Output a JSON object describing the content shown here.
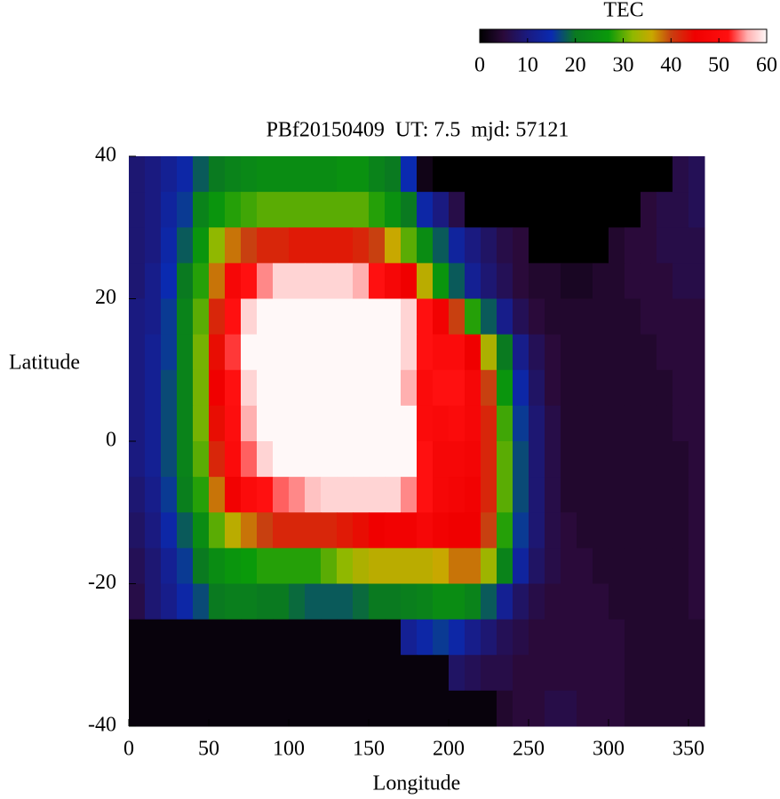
{
  "chart_data": {
    "type": "heatmap",
    "title": "PBf20150409  UT: 7.5  mjd: 57121",
    "xlabel": "Longitude",
    "ylabel": "Latitude",
    "colorbar_title": "TEC",
    "colorbar_lim": [
      0,
      60
    ],
    "colorbar_ticks": [
      0,
      10,
      20,
      30,
      40,
      50,
      60
    ],
    "colormap": [
      [
        0,
        "#000000"
      ],
      [
        5,
        "#2a0a3a"
      ],
      [
        10,
        "#1a1a80"
      ],
      [
        15,
        "#0a2ab0"
      ],
      [
        20,
        "#0a7a20"
      ],
      [
        27,
        "#0a9a0a"
      ],
      [
        32,
        "#90b800"
      ],
      [
        36,
        "#c8a800"
      ],
      [
        40,
        "#c84010"
      ],
      [
        45,
        "#f00000"
      ],
      [
        52,
        "#ff1010"
      ],
      [
        56,
        "#ffb0b0"
      ],
      [
        60,
        "#fff8f8"
      ]
    ],
    "xlim": [
      0,
      360
    ],
    "xticks": [
      0,
      50,
      100,
      150,
      200,
      250,
      300,
      350
    ],
    "ylim": [
      -40,
      40
    ],
    "yticks": [
      -40,
      -20,
      0,
      20,
      40
    ],
    "x": [
      5,
      15,
      25,
      35,
      45,
      55,
      65,
      75,
      85,
      95,
      105,
      115,
      125,
      135,
      145,
      155,
      165,
      175,
      185,
      195,
      205,
      215,
      225,
      235,
      245,
      255,
      265,
      275,
      285,
      295,
      305,
      315,
      325,
      335,
      345,
      355
    ],
    "y": [
      37.5,
      32.5,
      27.5,
      22.5,
      17.5,
      12.5,
      7.5,
      2.5,
      -2.5,
      -7.5,
      -12.5,
      -17.5,
      -22.5,
      -27.5,
      -32.5,
      -37.5
    ],
    "values": [
      [
        9,
        10,
        12,
        14,
        18,
        20,
        22,
        23,
        24,
        24,
        24,
        24,
        24,
        25,
        25,
        22,
        20,
        15,
        2,
        0,
        0,
        0,
        0,
        0,
        0,
        0,
        0,
        0,
        0,
        0,
        0,
        0,
        0,
        0,
        6,
        7
      ],
      [
        9,
        10,
        13,
        16,
        22,
        26,
        28,
        29,
        30,
        30,
        30,
        30,
        30,
        30,
        30,
        28,
        25,
        20,
        14,
        10,
        6,
        0,
        0,
        0,
        0,
        0,
        0,
        0,
        0,
        0,
        0,
        0,
        5,
        6,
        6,
        7
      ],
      [
        9,
        10,
        14,
        18,
        26,
        32,
        38,
        40,
        42,
        42,
        43,
        43,
        43,
        43,
        42,
        40,
        36,
        30,
        24,
        18,
        13,
        10,
        8,
        6,
        5,
        0,
        0,
        0,
        0,
        0,
        4,
        5,
        5,
        6,
        6,
        6
      ],
      [
        9,
        11,
        15,
        20,
        28,
        38,
        48,
        52,
        55,
        58,
        58,
        58,
        58,
        58,
        56,
        52,
        48,
        45,
        35,
        26,
        18,
        12,
        9,
        7,
        5,
        4,
        4,
        3,
        3,
        4,
        4,
        5,
        5,
        5,
        6,
        6
      ],
      [
        10,
        11,
        16,
        22,
        30,
        42,
        52,
        58,
        60,
        60,
        60,
        60,
        60,
        60,
        60,
        60,
        60,
        58,
        52,
        46,
        40,
        28,
        18,
        11,
        7,
        5,
        4,
        4,
        4,
        4,
        4,
        4,
        5,
        5,
        5,
        5
      ],
      [
        10,
        12,
        16,
        22,
        31,
        44,
        53,
        60,
        60,
        60,
        60,
        60,
        60,
        60,
        60,
        60,
        60,
        58,
        52,
        50,
        50,
        45,
        34,
        20,
        11,
        7,
        5,
        4,
        4,
        4,
        4,
        4,
        4,
        5,
        5,
        5
      ],
      [
        10,
        12,
        17,
        22,
        31,
        45,
        52,
        58,
        60,
        60,
        60,
        60,
        60,
        60,
        60,
        60,
        60,
        56,
        50,
        52,
        52,
        48,
        40,
        26,
        14,
        8,
        5,
        4,
        4,
        4,
        4,
        4,
        4,
        4,
        5,
        5
      ],
      [
        10,
        12,
        17,
        22,
        31,
        44,
        51,
        56,
        60,
        60,
        60,
        60,
        60,
        60,
        60,
        60,
        60,
        60,
        50,
        49,
        50,
        48,
        42,
        29,
        16,
        9,
        6,
        4,
        4,
        4,
        4,
        4,
        4,
        4,
        5,
        5
      ],
      [
        10,
        12,
        17,
        22,
        30,
        42,
        50,
        54,
        58,
        60,
        60,
        60,
        60,
        60,
        60,
        60,
        60,
        60,
        52,
        48,
        48,
        47,
        42,
        30,
        17,
        9,
        6,
        4,
        4,
        4,
        4,
        4,
        4,
        4,
        4,
        5
      ],
      [
        9,
        11,
        16,
        21,
        28,
        38,
        46,
        50,
        52,
        54,
        55,
        57,
        58,
        58,
        58,
        58,
        58,
        55,
        52,
        48,
        47,
        46,
        42,
        30,
        17,
        9,
        6,
        4,
        4,
        4,
        4,
        4,
        4,
        4,
        4,
        5
      ],
      [
        8,
        10,
        14,
        18,
        24,
        30,
        35,
        38,
        40,
        42,
        42,
        42,
        42,
        43,
        44,
        45,
        46,
        46,
        48,
        46,
        45,
        45,
        40,
        28,
        16,
        9,
        6,
        5,
        4,
        4,
        4,
        4,
        4,
        4,
        4,
        5
      ],
      [
        7,
        9,
        12,
        16,
        20,
        24,
        26,
        27,
        28,
        28,
        28,
        28,
        30,
        32,
        34,
        35,
        35,
        35,
        35,
        36,
        38,
        38,
        33,
        22,
        13,
        8,
        6,
        5,
        5,
        4,
        4,
        4,
        4,
        4,
        4,
        5
      ],
      [
        6,
        9,
        11,
        14,
        17,
        20,
        21,
        21,
        20,
        20,
        19,
        18,
        18,
        18,
        19,
        20,
        20,
        21,
        22,
        24,
        24,
        22,
        18,
        12,
        8,
        6,
        5,
        5,
        5,
        5,
        4,
        4,
        4,
        4,
        4,
        5
      ],
      [
        1,
        1,
        1,
        1,
        1,
        1,
        1,
        1,
        1,
        1,
        1,
        1,
        1,
        1,
        1,
        1,
        1,
        12,
        14,
        16,
        14,
        11,
        9,
        7,
        6,
        5,
        5,
        5,
        5,
        5,
        5,
        4,
        4,
        4,
        4,
        4
      ],
      [
        1,
        1,
        1,
        1,
        1,
        1,
        1,
        1,
        1,
        1,
        1,
        1,
        1,
        1,
        1,
        1,
        1,
        1,
        1,
        1,
        8,
        7,
        6,
        6,
        5,
        5,
        5,
        5,
        5,
        5,
        5,
        4,
        4,
        4,
        4,
        4
      ],
      [
        1,
        1,
        1,
        1,
        1,
        1,
        1,
        1,
        1,
        1,
        1,
        1,
        1,
        1,
        1,
        1,
        1,
        1,
        1,
        1,
        1,
        1,
        1,
        4,
        5,
        5,
        6,
        6,
        5,
        5,
        5,
        4,
        4,
        4,
        4,
        4
      ]
    ]
  }
}
